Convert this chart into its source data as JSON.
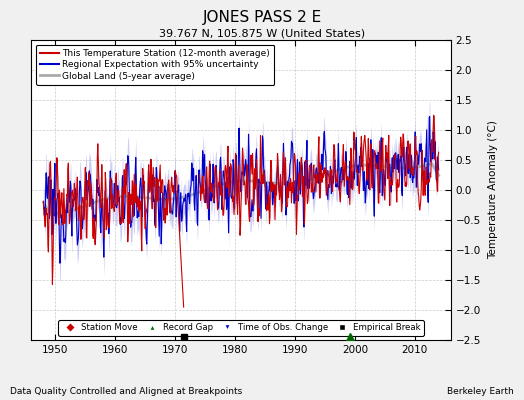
{
  "title": "JONES PASS 2 E",
  "subtitle": "39.767 N, 105.875 W (United States)",
  "ylabel": "Temperature Anomaly (°C)",
  "xlabel_note": "Data Quality Controlled and Aligned at Breakpoints",
  "credit": "Berkeley Earth",
  "xlim": [
    1946,
    2016
  ],
  "ylim": [
    -2.5,
    2.5
  ],
  "yticks": [
    -2.5,
    -2,
    -1.5,
    -1,
    -0.5,
    0,
    0.5,
    1,
    1.5,
    2,
    2.5
  ],
  "xticks": [
    1950,
    1960,
    1970,
    1980,
    1990,
    2000,
    2010
  ],
  "bg_color": "#f0f0f0",
  "plot_bg_color": "#ffffff",
  "station_color": "#cc0000",
  "regional_color": "#0000cc",
  "uncertainty_color": "#aaaaee",
  "global_color": "#aaaaaa",
  "empirical_break_x": 1971.5,
  "record_gap_x": 1999.2,
  "legend_items": [
    {
      "label": "This Temperature Station (12-month average)",
      "color": "#cc0000",
      "lw": 1.5
    },
    {
      "label": "Regional Expectation with 95% uncertainty",
      "color": "#0000cc",
      "lw": 1.5
    },
    {
      "label": "Global Land (5-year average)",
      "color": "#aaaaaa",
      "lw": 2.0
    }
  ],
  "marker_legend": [
    {
      "label": "Station Move",
      "marker": "D",
      "color": "#cc0000"
    },
    {
      "label": "Record Gap",
      "marker": "^",
      "color": "#006600"
    },
    {
      "label": "Time of Obs. Change",
      "marker": "v",
      "color": "#0000cc"
    },
    {
      "label": "Empirical Break",
      "marker": "s",
      "color": "#000000"
    }
  ]
}
